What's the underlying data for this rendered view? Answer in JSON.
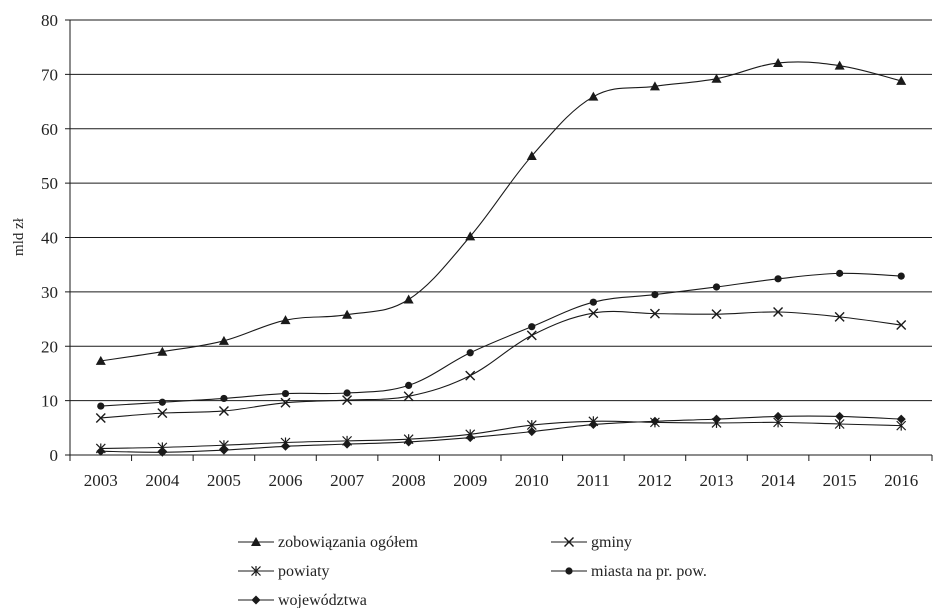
{
  "chart_data": {
    "type": "line",
    "title": "",
    "xlabel": "",
    "ylabel": "mld zł",
    "ylim": [
      0,
      80
    ],
    "yticks": [
      0,
      10,
      20,
      30,
      40,
      50,
      60,
      70,
      80
    ],
    "grid": "horizontal",
    "legend_position": "bottom",
    "categories": [
      "2003",
      "2004",
      "2005",
      "2006",
      "2007",
      "2008",
      "2009",
      "2010",
      "2011",
      "2012",
      "2013",
      "2014",
      "2015",
      "2016"
    ],
    "series": [
      {
        "name": "zobowiązania ogółem",
        "marker": "triangle",
        "values": [
          17.3,
          19.0,
          21.0,
          24.8,
          25.8,
          28.6,
          40.2,
          55.0,
          65.9,
          67.8,
          69.2,
          72.1,
          71.6,
          68.8
        ]
      },
      {
        "name": "gminy",
        "marker": "x",
        "values": [
          6.8,
          7.7,
          8.1,
          9.6,
          10.1,
          10.8,
          14.6,
          22.0,
          26.1,
          26.0,
          25.9,
          26.3,
          25.4,
          23.9
        ]
      },
      {
        "name": "powiaty",
        "marker": "star",
        "values": [
          1.2,
          1.4,
          1.8,
          2.3,
          2.6,
          2.9,
          3.8,
          5.5,
          6.2,
          6.0,
          5.9,
          6.0,
          5.7,
          5.4
        ]
      },
      {
        "name": "miasta na pr. pow.",
        "marker": "circle",
        "values": [
          9.0,
          9.7,
          10.4,
          11.3,
          11.4,
          12.8,
          18.8,
          23.6,
          28.1,
          29.5,
          30.9,
          32.4,
          33.4,
          32.9
        ]
      },
      {
        "name": "województwa",
        "marker": "diamond",
        "values": [
          0.7,
          0.5,
          0.9,
          1.6,
          2.0,
          2.4,
          3.2,
          4.3,
          5.6,
          6.2,
          6.6,
          7.1,
          7.1,
          6.6
        ]
      }
    ]
  }
}
